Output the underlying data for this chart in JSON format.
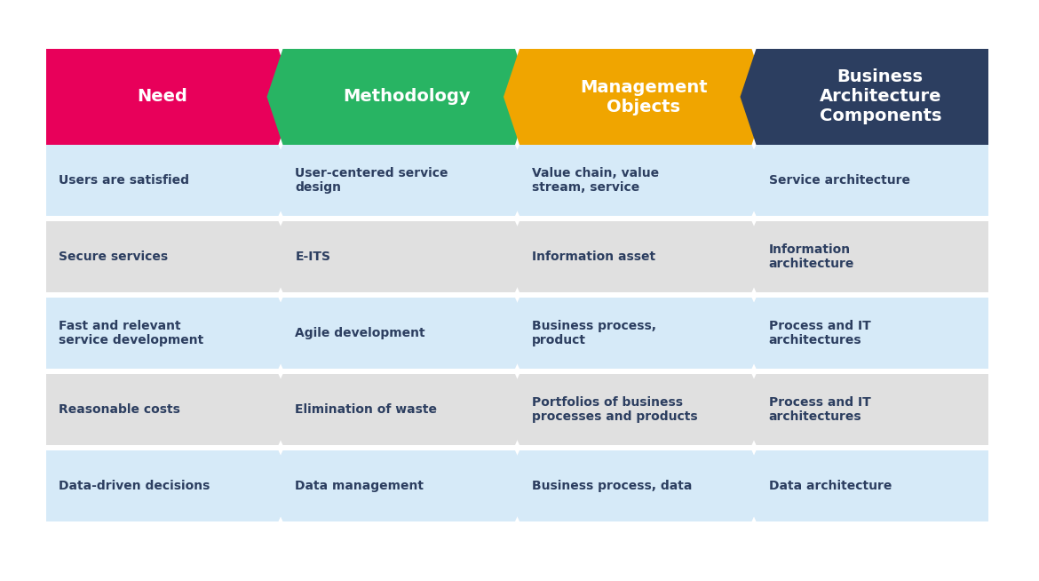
{
  "background_color": "#ffffff",
  "header_colors": [
    "#E8005A",
    "#28B463",
    "#F0A500",
    "#2C3E60"
  ],
  "header_texts": [
    "Need",
    "Methodology",
    "Management\nObjects",
    "Business\nArchitecture\nComponents"
  ],
  "header_text_color": "#ffffff",
  "row_colors_alt": [
    "#D6EAF8",
    "#E0E0E0"
  ],
  "row_data": [
    [
      "Users are satisfied",
      "User-centered service\ndesign",
      "Value chain, value\nstream, service",
      "Service architecture"
    ],
    [
      "Secure services",
      "E-ITS",
      "Information asset",
      "Information\narchitecture"
    ],
    [
      "Fast and relevant\nservice development",
      "Agile development",
      "Business process,\nproduct",
      "Process and IT\narchitectures"
    ],
    [
      "Reasonable costs",
      "Elimination of waste",
      "Portfolios of business\nprocesses and products",
      "Process and IT\narchitectures"
    ],
    [
      "Data-driven decisions",
      "Data management",
      "Business process, data",
      "Data architecture"
    ]
  ],
  "num_cols": 4,
  "num_rows": 5,
  "cell_text_color": "#2C3E60",
  "cell_text_fontsize": 10,
  "header_fontsize": 14
}
